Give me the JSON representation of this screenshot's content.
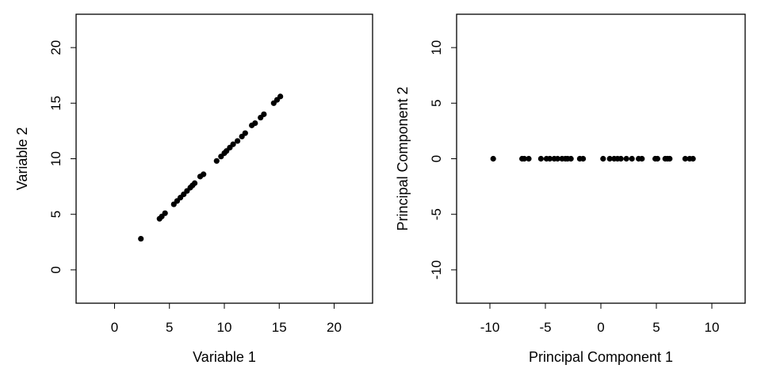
{
  "chart_data": [
    {
      "type": "scatter",
      "xlabel": "Variable 1",
      "ylabel": "Variable 2",
      "xlim": [
        -3.5,
        23.5
      ],
      "ylim": [
        -3,
        23
      ],
      "xticks": [
        0,
        5,
        10,
        15,
        20
      ],
      "yticks": [
        0,
        5,
        10,
        15,
        20
      ],
      "grid": false,
      "points": [
        {
          "x": 2.4,
          "y": 2.8
        },
        {
          "x": 4.1,
          "y": 4.6
        },
        {
          "x": 4.3,
          "y": 4.8
        },
        {
          "x": 4.6,
          "y": 5.1
        },
        {
          "x": 5.4,
          "y": 5.9
        },
        {
          "x": 5.7,
          "y": 6.2
        },
        {
          "x": 6.0,
          "y": 6.5
        },
        {
          "x": 6.3,
          "y": 6.8
        },
        {
          "x": 6.6,
          "y": 7.1
        },
        {
          "x": 6.9,
          "y": 7.4
        },
        {
          "x": 7.1,
          "y": 7.6
        },
        {
          "x": 7.3,
          "y": 7.8
        },
        {
          "x": 7.8,
          "y": 8.4
        },
        {
          "x": 8.1,
          "y": 8.6
        },
        {
          "x": 9.3,
          "y": 9.8
        },
        {
          "x": 9.7,
          "y": 10.2
        },
        {
          "x": 10.0,
          "y": 10.5
        },
        {
          "x": 10.2,
          "y": 10.7
        },
        {
          "x": 10.5,
          "y": 11.0
        },
        {
          "x": 10.8,
          "y": 11.3
        },
        {
          "x": 11.2,
          "y": 11.6
        },
        {
          "x": 11.6,
          "y": 12.0
        },
        {
          "x": 11.9,
          "y": 12.3
        },
        {
          "x": 12.5,
          "y": 13.0
        },
        {
          "x": 12.8,
          "y": 13.2
        },
        {
          "x": 13.3,
          "y": 13.7
        },
        {
          "x": 13.6,
          "y": 14.0
        },
        {
          "x": 14.5,
          "y": 15.0
        },
        {
          "x": 14.8,
          "y": 15.3
        },
        {
          "x": 15.1,
          "y": 15.6
        }
      ]
    },
    {
      "type": "scatter",
      "xlabel": "Principal Component 1",
      "ylabel": "Principal Component 2",
      "xlim": [
        -13,
        13
      ],
      "ylim": [
        -13,
        13
      ],
      "xticks": [
        -10,
        -5,
        0,
        5,
        10
      ],
      "yticks": [
        -10,
        -5,
        0,
        5,
        10
      ],
      "grid": false,
      "points": [
        {
          "x": -9.7,
          "y": 0
        },
        {
          "x": -7.1,
          "y": 0
        },
        {
          "x": -6.9,
          "y": 0
        },
        {
          "x": -6.5,
          "y": 0
        },
        {
          "x": -5.4,
          "y": 0
        },
        {
          "x": -4.9,
          "y": 0
        },
        {
          "x": -4.6,
          "y": 0
        },
        {
          "x": -4.2,
          "y": 0
        },
        {
          "x": -3.9,
          "y": 0
        },
        {
          "x": -3.5,
          "y": 0
        },
        {
          "x": -3.2,
          "y": 0
        },
        {
          "x": -3.0,
          "y": 0
        },
        {
          "x": -2.7,
          "y": 0
        },
        {
          "x": -1.9,
          "y": 0
        },
        {
          "x": -1.6,
          "y": 0
        },
        {
          "x": 0.2,
          "y": 0
        },
        {
          "x": 0.8,
          "y": 0
        },
        {
          "x": 1.2,
          "y": 0
        },
        {
          "x": 1.5,
          "y": 0
        },
        {
          "x": 1.8,
          "y": 0
        },
        {
          "x": 2.3,
          "y": 0
        },
        {
          "x": 2.8,
          "y": 0
        },
        {
          "x": 3.4,
          "y": 0
        },
        {
          "x": 3.7,
          "y": 0
        },
        {
          "x": 4.9,
          "y": 0
        },
        {
          "x": 5.1,
          "y": 0
        },
        {
          "x": 5.8,
          "y": 0
        },
        {
          "x": 6.0,
          "y": 0
        },
        {
          "x": 6.2,
          "y": 0
        },
        {
          "x": 7.6,
          "y": 0
        },
        {
          "x": 8.0,
          "y": 0
        },
        {
          "x": 8.3,
          "y": 0
        }
      ]
    }
  ]
}
